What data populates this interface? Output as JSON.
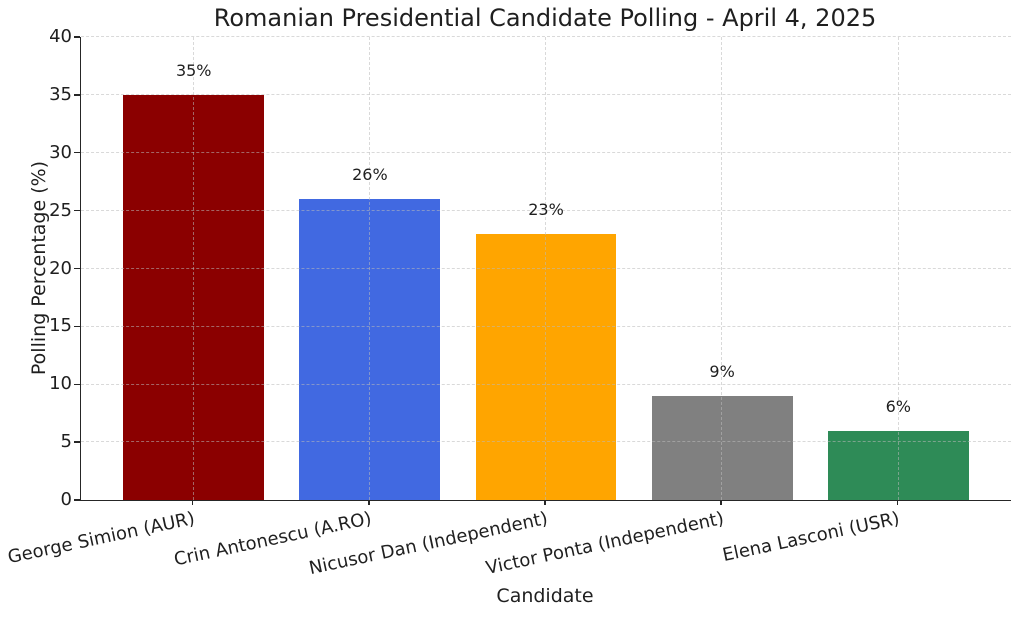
{
  "chart_data": {
    "type": "bar",
    "title": "Romanian Presidential Candidate Polling - April 4, 2025",
    "xlabel": "Candidate",
    "ylabel": "Polling Percentage (%)",
    "categories": [
      "George Simion (AUR)",
      "Crin Antonescu (A.RO)",
      "Nicusor Dan (Independent)",
      "Victor Ponta (Independent)",
      "Elena Lasconi (USR)"
    ],
    "values": [
      35,
      26,
      23,
      9,
      6
    ],
    "value_labels": [
      "35%",
      "26%",
      "23%",
      "9%",
      "6%"
    ],
    "bar_colors": [
      "#8B0000",
      "#4169E1",
      "#FFA500",
      "#808080",
      "#2E8B57"
    ],
    "ylim": [
      0,
      40
    ],
    "yticks": [
      0,
      5,
      10,
      15,
      20,
      25,
      30,
      35,
      40
    ],
    "grid": "dashed, horizontal and vertical, drawn over bars",
    "legend_position": "none",
    "background_color": "#ffffff",
    "text_color": "#1f1f1f",
    "xtick_rotation_degrees": 12
  }
}
